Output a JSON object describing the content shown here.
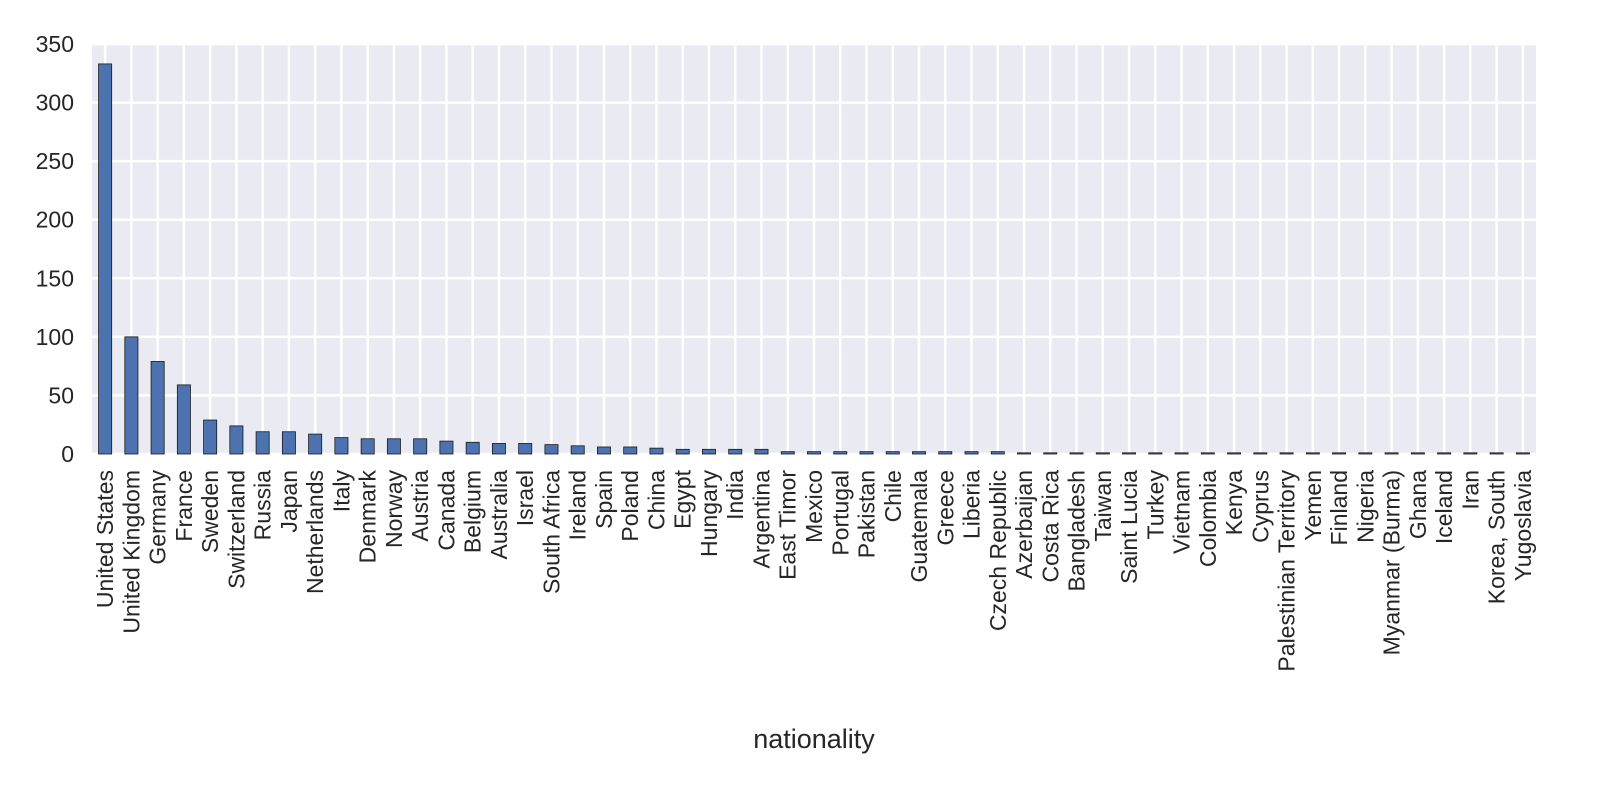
{
  "chart_data": {
    "type": "bar",
    "title": "",
    "xlabel": "nationality",
    "ylabel": "",
    "ylim": [
      0,
      350
    ],
    "yticks": [
      0,
      50,
      100,
      150,
      200,
      250,
      300,
      350
    ],
    "grid": true,
    "legend": "none",
    "colors": {
      "bar": "#4c72b0",
      "bar_edge": "#1a1a1a",
      "plot_background": "#eaeaf2",
      "grid": "#ffffff",
      "text": "#262626"
    },
    "categories": [
      "United States",
      "United Kingdom",
      "Germany",
      "France",
      "Sweden",
      "Switzerland",
      "Russia",
      "Japan",
      "Netherlands",
      "Italy",
      "Denmark",
      "Norway",
      "Austria",
      "Canada",
      "Belgium",
      "Australia",
      "Israel",
      "South Africa",
      "Ireland",
      "Spain",
      "Poland",
      "China",
      "Egypt",
      "Hungary",
      "India",
      "Argentina",
      "East Timor",
      "Mexico",
      "Portugal",
      "Pakistan",
      "Chile",
      "Guatemala",
      "Greece",
      "Liberia",
      "Czech Republic",
      "Azerbaijan",
      "Costa Rica",
      "Bangladesh",
      "Taiwan",
      "Saint Lucia",
      "Turkey",
      "Vietnam",
      "Colombia",
      "Kenya",
      "Cyprus",
      "Palestinian Territory",
      "Yemen",
      "Finland",
      "Nigeria",
      "Myanmar (Burma)",
      "Ghana",
      "Iceland",
      "Iran",
      "Korea, South",
      "Yugoslavia"
    ],
    "values": [
      333,
      100,
      79,
      59,
      29,
      24,
      19,
      19,
      17,
      14,
      13,
      13,
      13,
      11,
      10,
      9,
      9,
      8,
      7,
      6,
      6,
      5,
      4,
      4,
      4,
      4,
      2,
      2,
      2,
      2,
      2,
      2,
      2,
      2,
      2,
      1,
      1,
      1,
      1,
      1,
      1,
      1,
      1,
      1,
      1,
      1,
      1,
      1,
      1,
      1,
      1,
      1,
      1,
      1,
      1
    ]
  }
}
